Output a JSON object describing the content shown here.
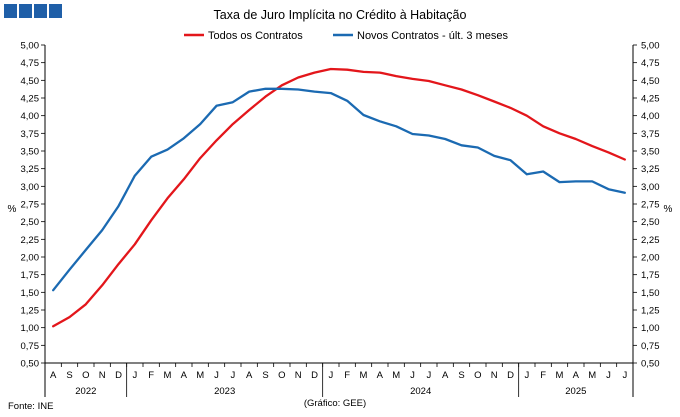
{
  "logo": {
    "block_count": 4,
    "color": "#1f5fa8"
  },
  "source_note": "Fonte: INE",
  "credit_note": "(Gráfico: GEE)",
  "chart_data": {
    "type": "line",
    "title": "Taxa de Juro Implícita no Crédito à Habitação",
    "ylabel_left": "%",
    "ylabel_right": "%",
    "ylim": [
      0.5,
      5.0
    ],
    "yticks": [
      "0,50",
      "0,75",
      "1,00",
      "1,25",
      "1,50",
      "1,75",
      "2,00",
      "2,25",
      "2,50",
      "2,75",
      "3,00",
      "3,25",
      "3,50",
      "3,75",
      "4,00",
      "4,25",
      "4,50",
      "4,75",
      "5,00"
    ],
    "ytick_values": [
      0.5,
      0.75,
      1.0,
      1.25,
      1.5,
      1.75,
      2.0,
      2.25,
      2.5,
      2.75,
      3.0,
      3.25,
      3.5,
      3.75,
      4.0,
      4.25,
      4.5,
      4.75,
      5.0
    ],
    "grid": false,
    "legend_position": "top-center",
    "categories": [
      "A",
      "S",
      "O",
      "N",
      "D",
      "J",
      "F",
      "M",
      "A",
      "M",
      "J",
      "J",
      "A",
      "S",
      "O",
      "N",
      "D",
      "J",
      "F",
      "M",
      "A",
      "M",
      "J",
      "J",
      "A",
      "S",
      "O",
      "N",
      "D",
      "J",
      "F",
      "M",
      "A",
      "M",
      "J",
      "J"
    ],
    "years": [
      {
        "label": "2022",
        "start": 0,
        "end": 4
      },
      {
        "label": "2023",
        "start": 5,
        "end": 16
      },
      {
        "label": "2024",
        "start": 17,
        "end": 28
      },
      {
        "label": "2025",
        "start": 29,
        "end": 35
      }
    ],
    "series": [
      {
        "name": "Todos os Contratos",
        "color": "#e3161b",
        "values": [
          1.02,
          1.15,
          1.33,
          1.6,
          1.9,
          2.18,
          2.52,
          2.83,
          3.1,
          3.4,
          3.65,
          3.88,
          4.08,
          4.27,
          4.43,
          4.54,
          4.61,
          4.66,
          4.65,
          4.62,
          4.61,
          4.56,
          4.52,
          4.49,
          4.43,
          4.37,
          4.29,
          4.2,
          4.11,
          4.0,
          3.85,
          3.75,
          3.67,
          3.57,
          3.48,
          3.38
        ]
      },
      {
        "name": "Novos Contratos - últ. 3 meses",
        "color": "#1b6ab2",
        "values": [
          1.53,
          1.82,
          2.1,
          2.38,
          2.72,
          3.15,
          3.42,
          3.52,
          3.68,
          3.88,
          4.14,
          4.19,
          4.34,
          4.38,
          4.38,
          4.37,
          4.34,
          4.32,
          4.21,
          4.01,
          3.92,
          3.85,
          3.74,
          3.72,
          3.67,
          3.58,
          3.55,
          3.43,
          3.37,
          3.17,
          3.21,
          3.06,
          3.07,
          3.07,
          2.96,
          2.91
        ]
      }
    ]
  }
}
